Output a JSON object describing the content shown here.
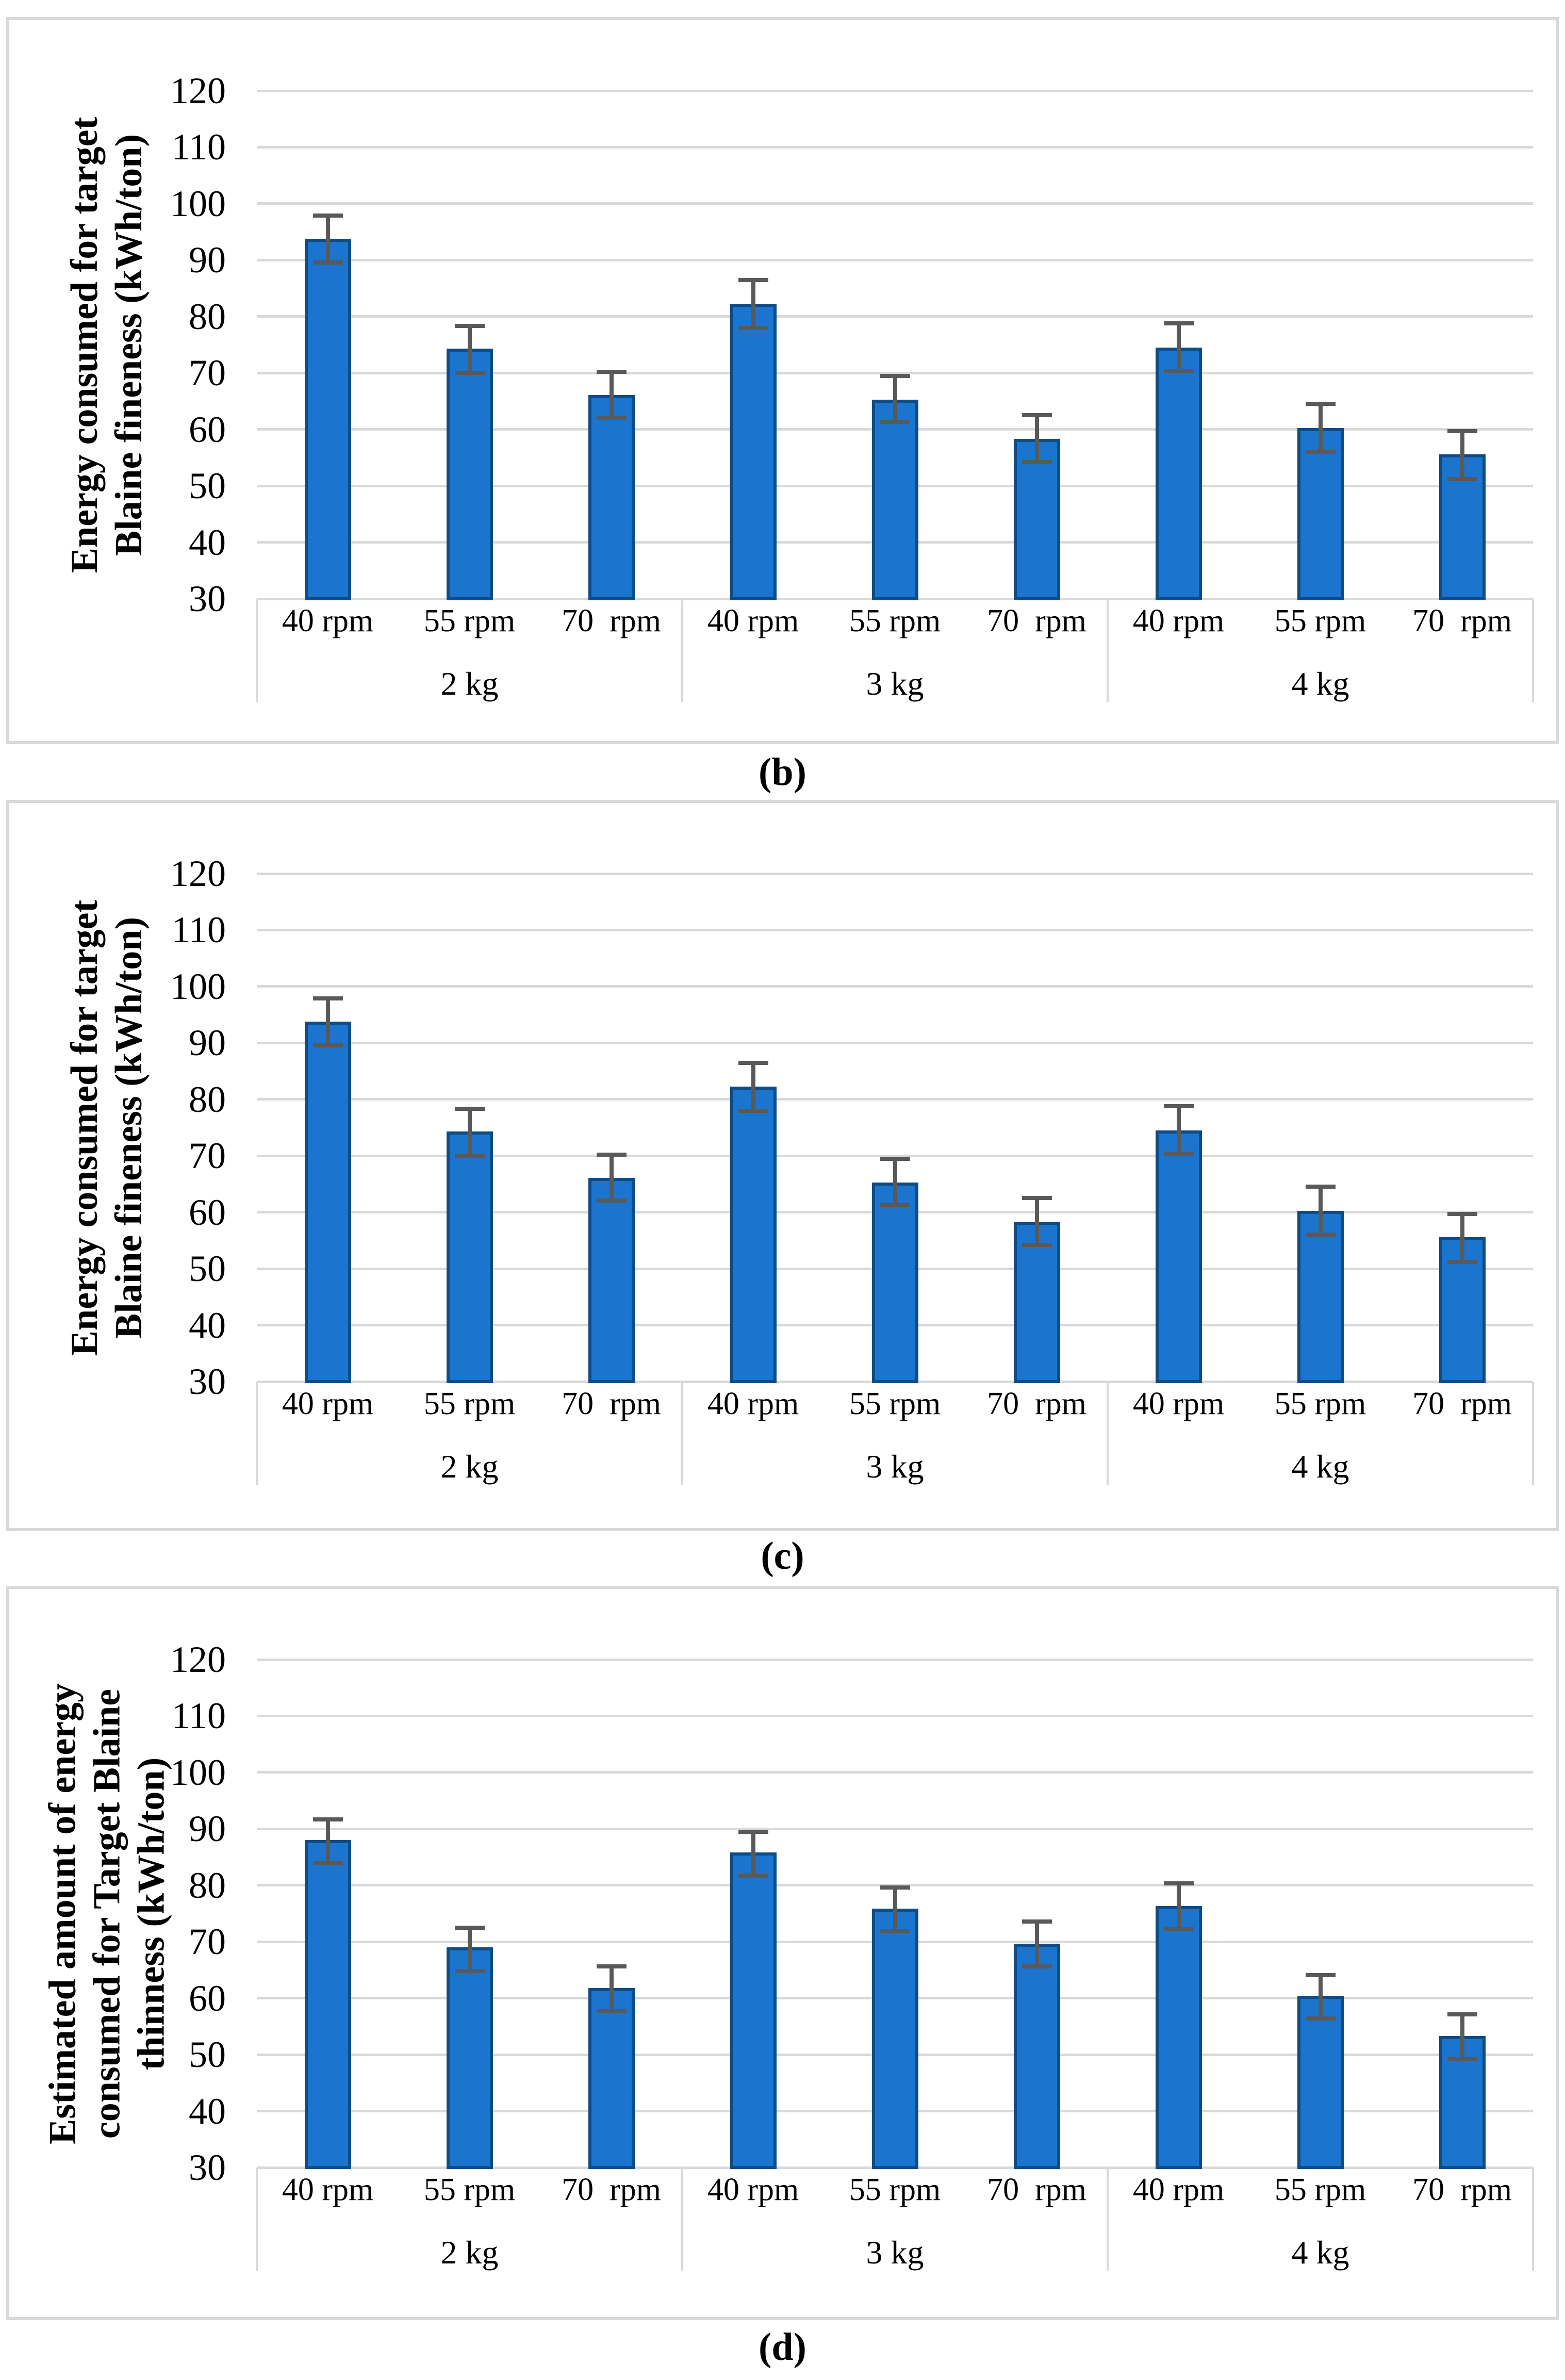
{
  "colors": {
    "bar_fill": "#1b75ce",
    "bar_border": "#0e4c86",
    "error_bar": "#595959",
    "gridline": "#d9d9d9",
    "panel_border": "#d9d9d9",
    "text": "#000000",
    "background": "#ffffff"
  },
  "chart_data": [
    {
      "id": "b",
      "type": "bar",
      "caption": "(b)",
      "ylabel": "Energy consumed for target\nBlaine fineness (kWh/ton)",
      "xlabel": "",
      "ylim": [
        30,
        120
      ],
      "ytick_step": 10,
      "yticks": [
        120,
        110,
        100,
        90,
        80,
        70,
        60,
        50,
        40,
        30
      ],
      "grid": true,
      "legend": "none",
      "groups": [
        "2 kg",
        "3 kg",
        "4 kg"
      ],
      "categories": [
        "40 rpm",
        "55 rpm",
        "70  rpm",
        "40 rpm",
        "55 rpm",
        "70  rpm",
        "40 rpm",
        "55 rpm",
        "70  rpm"
      ],
      "values": [
        93.8,
        74.3,
        66.1,
        82.3,
        65.3,
        58.3,
        74.5,
        60.2,
        55.6
      ],
      "error_low": [
        89.6,
        70.0,
        62.1,
        78.0,
        61.3,
        54.2,
        70.4,
        56.0,
        51.2
      ],
      "error_high": [
        97.9,
        78.3,
        70.2,
        86.5,
        69.5,
        62.5,
        78.8,
        64.5,
        59.7
      ]
    },
    {
      "id": "c",
      "type": "bar",
      "caption": "(c)",
      "ylabel": "Energy consumed for target\nBlaine fineness (kWh/ton)",
      "xlabel": "",
      "ylim": [
        30,
        120
      ],
      "ytick_step": 10,
      "yticks": [
        120,
        110,
        100,
        90,
        80,
        70,
        60,
        50,
        40,
        30
      ],
      "grid": true,
      "legend": "none",
      "groups": [
        "2 kg",
        "3 kg",
        "4 kg"
      ],
      "categories": [
        "40 rpm",
        "55 rpm",
        "70  rpm",
        "40 rpm",
        "55 rpm",
        "70  rpm",
        "40 rpm",
        "55 rpm",
        "70  rpm"
      ],
      "values": [
        93.8,
        74.3,
        66.1,
        82.3,
        65.3,
        58.3,
        74.5,
        60.2,
        55.6
      ],
      "error_low": [
        89.6,
        70.0,
        62.1,
        78.0,
        61.3,
        54.2,
        70.4,
        56.0,
        51.2
      ],
      "error_high": [
        97.9,
        78.3,
        70.2,
        86.5,
        69.5,
        62.5,
        78.8,
        64.5,
        59.7
      ]
    },
    {
      "id": "d",
      "type": "bar",
      "caption": "(d)",
      "ylabel": "Estimated amount of energy\nconsumed for Target Blaine\nthinness (kWh/ton)",
      "xlabel": "",
      "ylim": [
        30,
        120
      ],
      "ytick_step": 10,
      "yticks": [
        120,
        110,
        100,
        90,
        80,
        70,
        60,
        50,
        40,
        30
      ],
      "grid": true,
      "legend": "none",
      "groups": [
        "2 kg",
        "3 kg",
        "4 kg"
      ],
      "categories": [
        "40 rpm",
        "55 rpm",
        "70  rpm",
        "40 rpm",
        "55 rpm",
        "70  rpm",
        "40 rpm",
        "55 rpm",
        "70  rpm"
      ],
      "values": [
        88.0,
        69.0,
        61.8,
        85.8,
        75.9,
        69.7,
        76.3,
        60.4,
        53.3
      ],
      "error_low": [
        84.0,
        64.8,
        57.8,
        81.7,
        71.9,
        65.6,
        72.2,
        56.4,
        49.3
      ],
      "error_high": [
        91.7,
        72.5,
        65.6,
        89.5,
        79.6,
        73.6,
        80.3,
        64.1,
        57.1
      ]
    }
  ]
}
